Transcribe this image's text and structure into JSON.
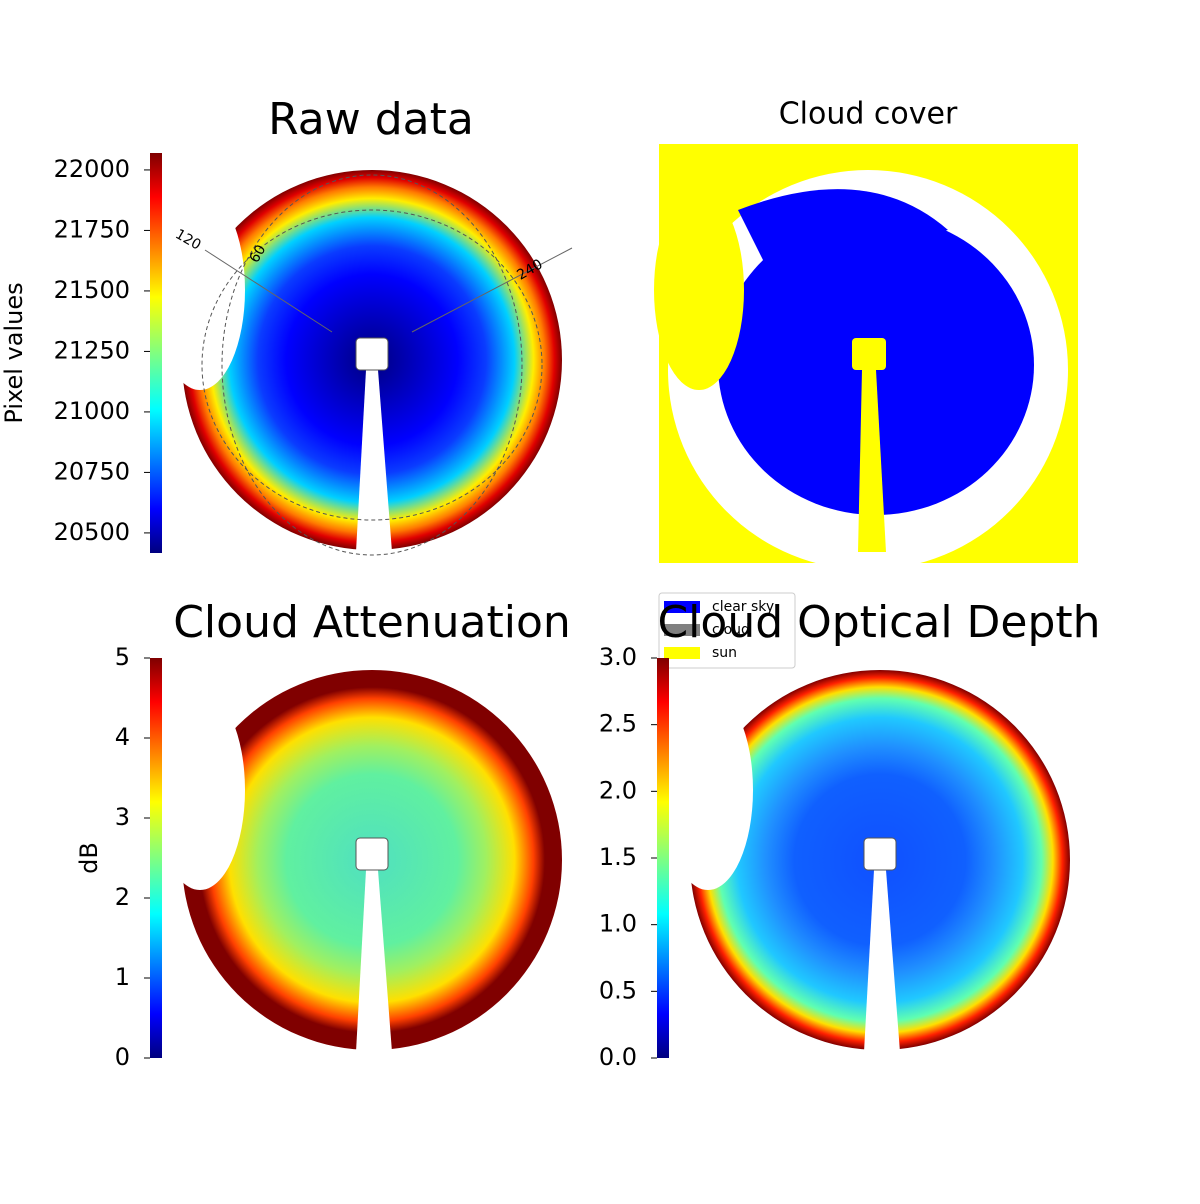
{
  "chart_data": [
    {
      "type": "colormap",
      "title": "Raw data",
      "colorbar_label": "Pixel values",
      "ylim": [
        20417,
        22070
      ],
      "yticks": [
        20500,
        20750,
        21000,
        21250,
        21500,
        21750,
        22000
      ],
      "annotations": [
        "120",
        "60",
        "240"
      ],
      "stops": [
        "#00007f",
        "#0000ff",
        "#0a3cff",
        "#00d0ff",
        "#ffee00",
        "#ff7a00",
        "#e00000",
        "#800000"
      ]
    },
    {
      "type": "categorical",
      "title": "Cloud cover",
      "series": [
        {
          "name": "clear sky",
          "color": "#0000ff"
        },
        {
          "name": "cloud",
          "color": "#808080"
        },
        {
          "name": "sun",
          "color": "#ffff00"
        }
      ]
    },
    {
      "type": "colormap",
      "title": "Cloud Attenuation",
      "colorbar_label": "dB",
      "ylim": [
        0,
        5
      ],
      "yticks": [
        0,
        1,
        2,
        3,
        4,
        5
      ],
      "stops": [
        "#50e0c0",
        "#60f0a0",
        "#a0f060",
        "#ffe000",
        "#ff4000",
        "#800000",
        "#800000",
        "#800000"
      ]
    },
    {
      "type": "colormap",
      "title": "Cloud Optical Depth",
      "ylim": [
        0,
        3
      ],
      "yticks": [
        {
          "value": 0,
          "label": "0.0"
        },
        {
          "value": 0.5,
          "label": "0.5"
        },
        {
          "value": 1,
          "label": "1.0"
        },
        {
          "value": 1.5,
          "label": "1.5"
        },
        {
          "value": 2,
          "label": "2.0"
        },
        {
          "value": 2.5,
          "label": "2.5"
        },
        {
          "value": 3,
          "label": "3.0"
        }
      ],
      "stops": [
        "#1050ff",
        "#1060ff",
        "#2090ff",
        "#20c8ff",
        "#60ffb0",
        "#ffe000",
        "#ff2000",
        "#800000"
      ]
    }
  ]
}
